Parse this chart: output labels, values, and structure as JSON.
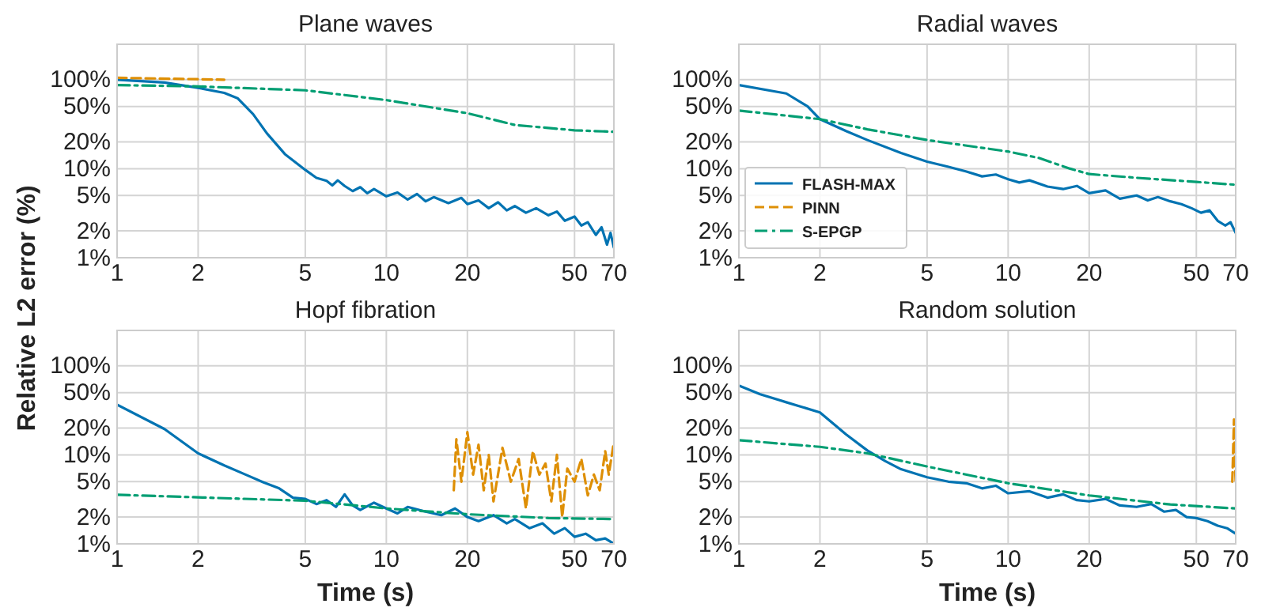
{
  "chart_data": [
    {
      "type": "line",
      "title": "Plane waves",
      "ylabel": "Relative L2 error (%)",
      "log": "xy",
      "grid": true,
      "xlim": [
        1,
        70
      ],
      "ylim": [
        1,
        250
      ],
      "xticks": [
        1,
        2,
        5,
        10,
        20,
        50,
        70
      ],
      "yticks": [
        {
          "value": 1,
          "label": "1%"
        },
        {
          "value": 2,
          "label": "2%"
        },
        {
          "value": 5,
          "label": "5%"
        },
        {
          "value": 10,
          "label": "10%"
        },
        {
          "value": 20,
          "label": "20%"
        },
        {
          "value": 50,
          "label": "50%"
        },
        {
          "value": 100,
          "label": "100%"
        }
      ],
      "series": [
        {
          "color": "#0173b2",
          "line_style": "solid",
          "x": [
            1,
            1.5,
            2,
            2.5,
            2.8,
            3.2,
            3.6,
            4.2,
            5,
            5.5,
            6,
            6.3,
            6.6,
            7,
            7.5,
            8,
            8.5,
            9,
            10,
            11,
            12,
            13,
            14,
            15,
            17,
            19,
            20,
            22,
            24,
            26,
            28,
            30,
            33,
            36,
            40,
            43,
            46,
            50,
            53,
            56,
            60,
            63,
            66,
            68,
            70
          ],
          "values": [
            100,
            93,
            81,
            71,
            62,
            41,
            25,
            14.6,
            9.7,
            7.9,
            7.3,
            6.5,
            7.4,
            6.4,
            5.6,
            6.2,
            5.3,
            5.9,
            4.9,
            5.4,
            4.5,
            5.2,
            4.3,
            4.8,
            4.1,
            4.7,
            4.0,
            4.4,
            3.6,
            4.2,
            3.4,
            3.8,
            3.2,
            3.6,
            3.0,
            3.3,
            2.6,
            2.9,
            2.3,
            2.5,
            1.8,
            2.2,
            1.4,
            1.9,
            1.3
          ]
        },
        {
          "color": "#de8f05",
          "line_style": "dashed",
          "x": [
            1,
            2.5
          ],
          "values": [
            105,
            100
          ]
        },
        {
          "color": "#029e73",
          "line_style": "dashdot",
          "x": [
            1,
            2,
            5,
            10,
            20,
            30,
            50,
            70
          ],
          "values": [
            87,
            84,
            76,
            59,
            42,
            31,
            27,
            26
          ]
        }
      ]
    },
    {
      "type": "line",
      "title": "Radial waves",
      "log": "xy",
      "grid": true,
      "legend": "bottom left",
      "xlim": [
        1,
        70
      ],
      "ylim": [
        1,
        250
      ],
      "xticks": [
        1,
        2,
        5,
        10,
        20,
        50,
        70
      ],
      "yticks": [
        {
          "value": 1,
          "label": "1%"
        },
        {
          "value": 2,
          "label": "2%"
        },
        {
          "value": 5,
          "label": "5%"
        },
        {
          "value": 10,
          "label": "10%"
        },
        {
          "value": 20,
          "label": "20%"
        },
        {
          "value": 50,
          "label": "50%"
        },
        {
          "value": 100,
          "label": "100%"
        }
      ],
      "series": [
        {
          "name": "FLASH-MAX",
          "color": "#0173b2",
          "line_style": "solid",
          "x": [
            1,
            1.5,
            1.8,
            2,
            2.5,
            3,
            4,
            5,
            6,
            7,
            8,
            9,
            10,
            11,
            12,
            14,
            16,
            18,
            20,
            23,
            26,
            30,
            33,
            36,
            40,
            44,
            48,
            52,
            56,
            60,
            64,
            67,
            70
          ],
          "values": [
            87,
            70,
            50,
            36,
            26.5,
            21,
            15,
            12,
            10.5,
            9.3,
            8.2,
            8.6,
            7.6,
            7.0,
            7.4,
            6.3,
            5.9,
            6.4,
            5.3,
            5.7,
            4.6,
            5.0,
            4.4,
            4.8,
            4.3,
            4.0,
            3.6,
            3.2,
            3.4,
            2.6,
            2.3,
            2.5,
            1.9
          ]
        },
        {
          "name": "PINN",
          "color": "#de8f05",
          "line_style": "dashed"
        },
        {
          "name": "S-EPGP",
          "color": "#029e73",
          "line_style": "dashdot",
          "x": [
            1,
            2,
            3,
            5,
            10,
            13,
            17,
            20,
            30,
            50,
            70
          ],
          "values": [
            45,
            36,
            27.7,
            21,
            15.6,
            13.2,
            10,
            8.7,
            7.9,
            7.1,
            6.6
          ]
        }
      ]
    },
    {
      "type": "line",
      "title": "Hopf fibration",
      "xlabel": "Time (s)",
      "log": "xy",
      "grid": true,
      "xlim": [
        1,
        70
      ],
      "ylim": [
        1,
        250
      ],
      "xticks": [
        1,
        2,
        5,
        10,
        20,
        50,
        70
      ],
      "yticks": [
        {
          "value": 1,
          "label": "1%"
        },
        {
          "value": 2,
          "label": "2%"
        },
        {
          "value": 5,
          "label": "5%"
        },
        {
          "value": 10,
          "label": "10%"
        },
        {
          "value": 20,
          "label": "20%"
        },
        {
          "value": 50,
          "label": "50%"
        },
        {
          "value": 100,
          "label": "100%"
        }
      ],
      "series": [
        {
          "color": "#0173b2",
          "line_style": "solid",
          "x": [
            1,
            1.5,
            2,
            2.5,
            3,
            3.5,
            4,
            4.5,
            5,
            5.5,
            6,
            6.5,
            7,
            7.5,
            8,
            9,
            10,
            11,
            12,
            14,
            16,
            18,
            20,
            22,
            25,
            28,
            30,
            34,
            38,
            42,
            46,
            50,
            55,
            60,
            65,
            70
          ],
          "values": [
            36.6,
            19.5,
            10.4,
            7.6,
            6,
            4.9,
            4.2,
            3.3,
            3.2,
            2.8,
            3.1,
            2.6,
            3.6,
            2.7,
            2.4,
            2.9,
            2.5,
            2.2,
            2.6,
            2.3,
            2.1,
            2.5,
            2.0,
            1.8,
            2.1,
            1.7,
            1.9,
            1.5,
            1.7,
            1.3,
            1.5,
            1.2,
            1.3,
            1.1,
            1.15,
            1.0
          ]
        },
        {
          "color": "#de8f05",
          "line_style": "dashed",
          "x": [
            17.8,
            18.2,
            19,
            20,
            21,
            22,
            23,
            24,
            25,
            27,
            29,
            31,
            33,
            35,
            37,
            39,
            41,
            43,
            45,
            47,
            50,
            53,
            56,
            59,
            62,
            65,
            67,
            70
          ],
          "values": [
            4,
            15,
            5,
            18,
            6,
            13,
            4,
            10,
            3,
            12,
            5,
            9,
            2.5,
            11,
            6,
            8,
            3,
            10,
            2,
            7,
            5,
            9,
            3.5,
            6,
            4,
            11,
            6,
            14
          ]
        },
        {
          "color": "#029e73",
          "line_style": "dashdot",
          "x": [
            1,
            5,
            10,
            20,
            40,
            70
          ],
          "values": [
            3.56,
            3.05,
            2.5,
            2.15,
            1.95,
            1.9
          ]
        }
      ]
    },
    {
      "type": "line",
      "title": "Random solution",
      "xlabel": "Time (s)",
      "log": "xy",
      "grid": true,
      "xlim": [
        1,
        70
      ],
      "ylim": [
        1,
        250
      ],
      "xticks": [
        1,
        2,
        5,
        10,
        20,
        50,
        70
      ],
      "yticks": [
        {
          "value": 1,
          "label": "1%"
        },
        {
          "value": 2,
          "label": "2%"
        },
        {
          "value": 5,
          "label": "5%"
        },
        {
          "value": 10,
          "label": "10%"
        },
        {
          "value": 20,
          "label": "20%"
        },
        {
          "value": 50,
          "label": "50%"
        },
        {
          "value": 100,
          "label": "100%"
        }
      ],
      "series": [
        {
          "color": "#0173b2",
          "line_style": "solid",
          "x": [
            1,
            1.2,
            1.5,
            2,
            2.5,
            3,
            3.5,
            4,
            5,
            6,
            7,
            8,
            9,
            10,
            12,
            14,
            16,
            18,
            20,
            23,
            26,
            30,
            34,
            38,
            42,
            46,
            50,
            55,
            60,
            65,
            70
          ],
          "values": [
            60,
            48,
            39,
            30,
            17,
            11.2,
            8.5,
            6.9,
            5.6,
            5.0,
            4.8,
            4.2,
            4.5,
            3.7,
            3.9,
            3.3,
            3.6,
            3.1,
            3.0,
            3.2,
            2.7,
            2.6,
            2.8,
            2.3,
            2.4,
            2.0,
            1.95,
            1.8,
            1.6,
            1.5,
            1.3
          ]
        },
        {
          "color": "#de8f05",
          "line_style": "dashed",
          "x": [
            68,
            69,
            69.5,
            70
          ],
          "values": [
            5,
            25,
            8,
            5
          ]
        },
        {
          "color": "#029e73",
          "line_style": "dashdot",
          "x": [
            1,
            2,
            3,
            5,
            10,
            20,
            40,
            70
          ],
          "values": [
            14.6,
            12.3,
            10.4,
            7.4,
            4.8,
            3.5,
            2.77,
            2.5
          ]
        }
      ]
    }
  ]
}
